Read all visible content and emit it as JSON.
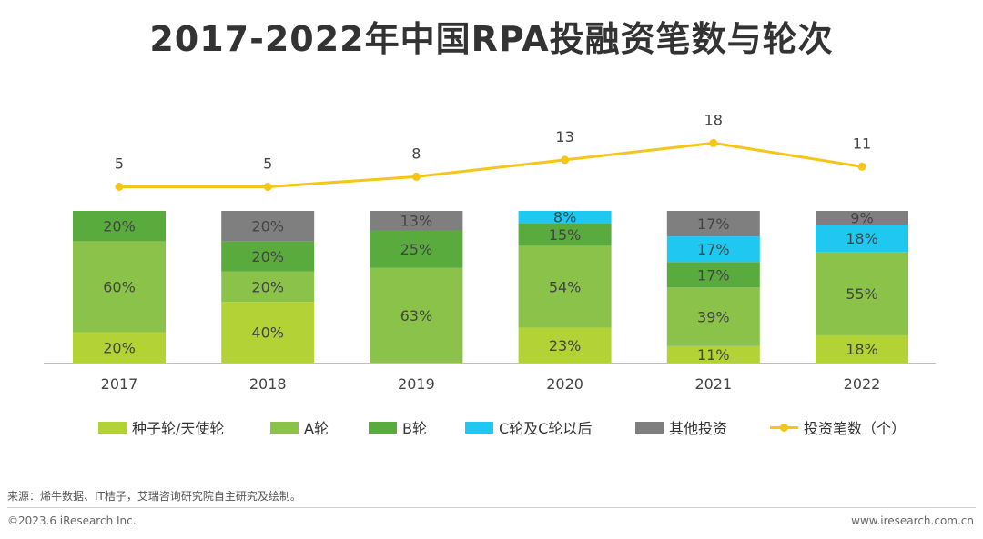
{
  "chart_data": {
    "type": "bar",
    "stacked": true,
    "title": "2017-2022年中国RPA投融资笔数与轮次",
    "categories": [
      "2017",
      "2018",
      "2019",
      "2020",
      "2021",
      "2022"
    ],
    "series": [
      {
        "name": "种子轮/天使轮",
        "color": "#b2d235",
        "values": [
          20,
          40,
          0,
          23,
          11,
          18
        ],
        "labels": [
          "20%",
          "40%",
          "",
          "23%",
          "11%",
          "18%"
        ]
      },
      {
        "name": "A轮",
        "color": "#8bc34a",
        "values": [
          60,
          20,
          63,
          54,
          39,
          55
        ],
        "labels": [
          "60%",
          "20%",
          "63%",
          "54%",
          "39%",
          "55%"
        ]
      },
      {
        "name": "B轮",
        "color": "#5aab3e",
        "values": [
          20,
          20,
          25,
          15,
          17,
          0
        ],
        "labels": [
          "20%",
          "20%",
          "25%",
          "15%",
          "17%",
          ""
        ]
      },
      {
        "name": "C轮及C轮以后",
        "color": "#1ec8f0",
        "values": [
          0,
          0,
          0,
          8,
          17,
          18
        ],
        "labels": [
          "",
          "",
          "",
          "8%",
          "17%",
          "18%"
        ]
      },
      {
        "name": "其他投资",
        "color": "#7f7f7f",
        "values": [
          0,
          20,
          13,
          0,
          17,
          9
        ],
        "labels": [
          "",
          "20%",
          "13%",
          "",
          "17%",
          "9%"
        ]
      }
    ],
    "line_series": {
      "name": "投资笔数（个）",
      "color": "#f5c518",
      "values": [
        5,
        5,
        8,
        13,
        18,
        11
      ]
    },
    "ylim": [
      0,
      100
    ],
    "legend_position": "bottom",
    "grid": false
  },
  "footer": {
    "source": "来源：烯牛数据、IT桔子，艾瑞咨询研究院自主研究及绘制。",
    "copyright": "©2023.6 iResearch Inc.",
    "website": "www.iresearch.com.cn"
  }
}
